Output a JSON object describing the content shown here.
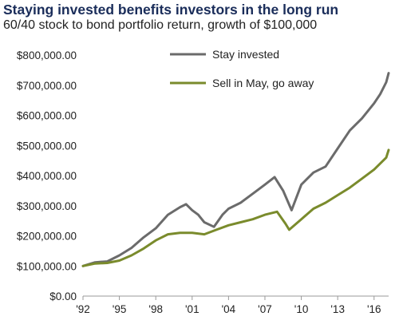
{
  "header": {
    "title": "Staying invested benefits investors in the long run",
    "subtitle": "60/40 stock to bond portfolio return, growth of $100,000"
  },
  "chart_data": {
    "type": "line",
    "title": "Staying invested benefits investors in the long run",
    "subtitle": "60/40 stock to bond portfolio return, growth of $100,000",
    "xlabel": "",
    "ylabel": "",
    "x_tick_labels": [
      "'92",
      "'95",
      "'98",
      "'01",
      "'04",
      "'07",
      "'10",
      "'13",
      "'16"
    ],
    "x_tick_years": [
      1992,
      1995,
      1998,
      2001,
      2004,
      2007,
      2010,
      2013,
      2016
    ],
    "y_tick_labels": [
      "$0.00",
      "$100,000.00",
      "$200,000.00",
      "$300,000.00",
      "$400,000.00",
      "$500,000.00",
      "$600,000.00",
      "$700,000.00",
      "$800,000.00"
    ],
    "y_tick_values": [
      0,
      100000,
      200000,
      300000,
      400000,
      500000,
      600000,
      700000,
      800000
    ],
    "xlim": [
      1992,
      2017.2
    ],
    "ylim": [
      0,
      800000
    ],
    "grid": false,
    "legend_position": "top-center",
    "series": [
      {
        "name": "Stay invested",
        "color": "#6b6b6b",
        "x": [
          1992,
          1993,
          1994,
          1995,
          1996,
          1997,
          1998,
          1999,
          2000,
          2000.5,
          2001,
          2001.5,
          2002,
          2002.8,
          2003.5,
          2004,
          2005,
          2006,
          2007,
          2007.8,
          2008.5,
          2009.2,
          2010,
          2011,
          2012,
          2013,
          2014,
          2015,
          2016,
          2016.5,
          2017,
          2017.2
        ],
        "y": [
          100000,
          112000,
          115000,
          135000,
          160000,
          195000,
          225000,
          270000,
          295000,
          305000,
          285000,
          270000,
          245000,
          230000,
          270000,
          290000,
          310000,
          340000,
          370000,
          395000,
          350000,
          285000,
          370000,
          410000,
          430000,
          490000,
          550000,
          590000,
          640000,
          670000,
          710000,
          740000
        ]
      },
      {
        "name": "Sell in May, go away",
        "color": "#7a8b2c",
        "x": [
          1992,
          1993,
          1994,
          1995,
          1996,
          1997,
          1998,
          1999,
          2000,
          2001,
          2002,
          2003,
          2004,
          2005,
          2006,
          2007,
          2008,
          2008.7,
          2009,
          2010,
          2011,
          2012,
          2013,
          2014,
          2015,
          2016,
          2017,
          2017.2
        ],
        "y": [
          100000,
          108000,
          110000,
          118000,
          135000,
          158000,
          185000,
          205000,
          210000,
          210000,
          205000,
          220000,
          235000,
          245000,
          255000,
          270000,
          280000,
          240000,
          220000,
          255000,
          290000,
          310000,
          335000,
          360000,
          390000,
          420000,
          460000,
          485000
        ]
      }
    ]
  }
}
